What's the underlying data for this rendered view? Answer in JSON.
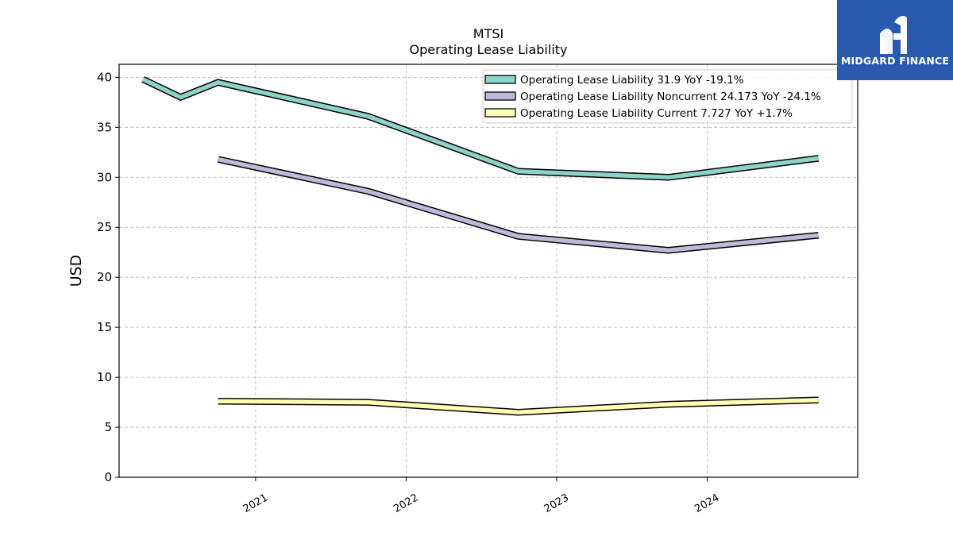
{
  "chart_data": {
    "type": "line",
    "title": "MTSI",
    "subtitle": "Operating Lease Liability",
    "ylabel": "USD",
    "xlabel": "",
    "ylim": [
      0,
      41.3
    ],
    "xlim": [
      "2020-02-05",
      "2024-12-31"
    ],
    "yticks": [
      0,
      5,
      10,
      15,
      20,
      25,
      30,
      35,
      40
    ],
    "xticks": [
      {
        "date": "2021-01-01",
        "label": "2021"
      },
      {
        "date": "2022-01-01",
        "label": "2022"
      },
      {
        "date": "2023-01-01",
        "label": "2023"
      },
      {
        "date": "2024-01-01",
        "label": "2024"
      }
    ],
    "grid": true,
    "legend_position": "top-right",
    "series": [
      {
        "name": "Operating Lease Liability",
        "legend_label": "Operating Lease Liability  31.9 YoY -19.1%",
        "color": "#8dd3c7",
        "points": [
          {
            "x": "2020-04-03",
            "y": 39.8
          },
          {
            "x": "2020-07-03",
            "y": 38.0
          },
          {
            "x": "2020-10-02",
            "y": 39.5
          },
          {
            "x": "2021-10-01",
            "y": 36.1
          },
          {
            "x": "2022-09-30",
            "y": 30.6
          },
          {
            "x": "2023-09-29",
            "y": 30.0
          },
          {
            "x": "2024-09-27",
            "y": 31.9
          }
        ]
      },
      {
        "name": "Operating Lease Liability Noncurrent",
        "legend_label": "Operating Lease Liability Noncurrent  24.173 YoY -24.1%",
        "color": "#bebada",
        "points": [
          {
            "x": "2020-10-02",
            "y": 31.8
          },
          {
            "x": "2021-10-01",
            "y": 28.6
          },
          {
            "x": "2022-09-30",
            "y": 24.1
          },
          {
            "x": "2023-09-29",
            "y": 22.7
          },
          {
            "x": "2024-09-27",
            "y": 24.2
          }
        ]
      },
      {
        "name": "Operating Lease Liability Current",
        "legend_label": "Operating Lease Liability Current  7.727 YoY +1.7%",
        "color": "#ffffb3",
        "points": [
          {
            "x": "2020-10-02",
            "y": 7.6
          },
          {
            "x": "2021-10-01",
            "y": 7.5
          },
          {
            "x": "2022-09-30",
            "y": 6.5
          },
          {
            "x": "2023-09-29",
            "y": 7.3
          },
          {
            "x": "2024-09-27",
            "y": 7.727
          }
        ]
      }
    ]
  },
  "logo": {
    "text": "MIDGARD FINANCE",
    "background": "#2a5aad"
  }
}
